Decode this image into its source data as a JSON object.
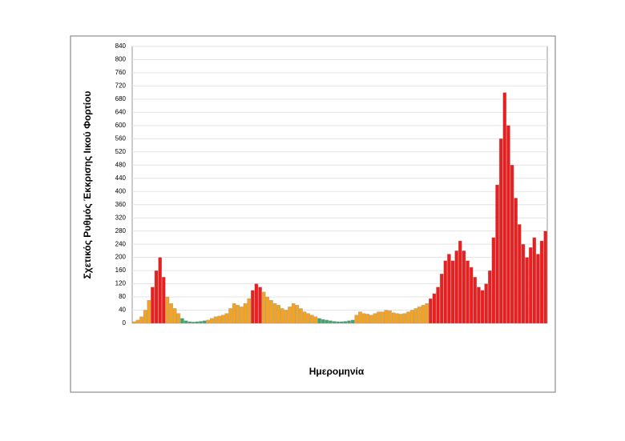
{
  "chart_data": {
    "type": "bar",
    "y_label": "Σχετικός Ρυθμός Έκκρισης Ιικού Φορτίου",
    "x_label": "Ημερομηνία",
    "categories": [
      null,
      null,
      null,
      null,
      null,
      null,
      null,
      null,
      null,
      null,
      null,
      null,
      null,
      null,
      null,
      null,
      null,
      null,
      null,
      null,
      null,
      null,
      null,
      null,
      null,
      null,
      null,
      null,
      null,
      null,
      null,
      null,
      null,
      null,
      null,
      null,
      null,
      null,
      null,
      null,
      null,
      null,
      null,
      null,
      null,
      null,
      null,
      null,
      null,
      null,
      null,
      null,
      null,
      null,
      null,
      null,
      null,
      null,
      null,
      null,
      null,
      null,
      null,
      null,
      null,
      null,
      null,
      null,
      null,
      null,
      null,
      null,
      null,
      null,
      null,
      null,
      null,
      null,
      null,
      null,
      null,
      null,
      null,
      null,
      null,
      null,
      null,
      null,
      null,
      null,
      null,
      null,
      null,
      null,
      null,
      null,
      null,
      null,
      null,
      null,
      null,
      null,
      null,
      null,
      null,
      null,
      null,
      null,
      null,
      null,
      null,
      null
    ],
    "values": [
      5,
      10,
      20,
      40,
      70,
      110,
      160,
      200,
      140,
      80,
      60,
      45,
      30,
      15,
      8,
      5,
      4,
      5,
      6,
      8,
      10,
      15,
      20,
      22,
      25,
      30,
      45,
      60,
      55,
      50,
      60,
      75,
      100,
      120,
      110,
      95,
      80,
      70,
      60,
      55,
      45,
      40,
      50,
      60,
      55,
      45,
      35,
      30,
      25,
      20,
      15,
      12,
      10,
      8,
      6,
      5,
      5,
      6,
      8,
      10,
      25,
      35,
      30,
      28,
      25,
      30,
      35,
      35,
      40,
      38,
      32,
      30,
      28,
      30,
      35,
      40,
      45,
      50,
      55,
      60,
      75,
      90,
      110,
      150,
      190,
      210,
      190,
      220,
      250,
      220,
      190,
      170,
      140,
      110,
      100,
      120,
      160,
      260,
      420,
      560,
      700,
      600,
      480,
      380,
      300,
      240,
      200,
      230,
      260,
      210,
      250,
      280
    ],
    "colors": [
      "#f7a21b",
      "#f7a21b",
      "#f7a21b",
      "#f7a21b",
      "#f7a21b",
      "#ee1c1c",
      "#ee1c1c",
      "#ee1c1c",
      "#ee1c1c",
      "#f7a21b",
      "#f7a21b",
      "#f7a21b",
      "#f7a21b",
      "#3aa66b",
      "#3aa66b",
      "#3aa66b",
      "#3aa66b",
      "#3aa66b",
      "#3aa66b",
      "#3aa66b",
      "#f7a21b",
      "#f7a21b",
      "#f7a21b",
      "#f7a21b",
      "#f7a21b",
      "#f7a21b",
      "#f7a21b",
      "#f7a21b",
      "#f7a21b",
      "#f7a21b",
      "#f7a21b",
      "#f7a21b",
      "#ee1c1c",
      "#ee1c1c",
      "#ee1c1c",
      "#f7a21b",
      "#f7a21b",
      "#f7a21b",
      "#f7a21b",
      "#f7a21b",
      "#f7a21b",
      "#f7a21b",
      "#f7a21b",
      "#f7a21b",
      "#f7a21b",
      "#f7a21b",
      "#f7a21b",
      "#f7a21b",
      "#f7a21b",
      "#f7a21b",
      "#3aa66b",
      "#3aa66b",
      "#3aa66b",
      "#3aa66b",
      "#3aa66b",
      "#3aa66b",
      "#3aa66b",
      "#3aa66b",
      "#3aa66b",
      "#3aa66b",
      "#f7a21b",
      "#f7a21b",
      "#f7a21b",
      "#f7a21b",
      "#f7a21b",
      "#f7a21b",
      "#f7a21b",
      "#f7a21b",
      "#f7a21b",
      "#f7a21b",
      "#f7a21b",
      "#f7a21b",
      "#f7a21b",
      "#f7a21b",
      "#f7a21b",
      "#f7a21b",
      "#f7a21b",
      "#f7a21b",
      "#f7a21b",
      "#f7a21b",
      "#ee1c1c",
      "#ee1c1c",
      "#ee1c1c",
      "#ee1c1c",
      "#ee1c1c",
      "#ee1c1c",
      "#ee1c1c",
      "#ee1c1c",
      "#ee1c1c",
      "#ee1c1c",
      "#ee1c1c",
      "#ee1c1c",
      "#ee1c1c",
      "#ee1c1c",
      "#ee1c1c",
      "#ee1c1c",
      "#ee1c1c",
      "#ee1c1c",
      "#ee1c1c",
      "#ee1c1c",
      "#ee1c1c",
      "#ee1c1c",
      "#ee1c1c",
      "#ee1c1c",
      "#ee1c1c",
      "#ee1c1c",
      "#ee1c1c",
      "#ee1c1c",
      "#ee1c1c",
      "#ee1c1c",
      "#ee1c1c",
      "#ee1c1c"
    ],
    "ylim": [
      0,
      840
    ],
    "yticks": [
      0,
      40,
      80,
      120,
      160,
      200,
      240,
      280,
      320,
      360,
      400,
      440,
      480,
      520,
      560,
      600,
      640,
      680,
      720,
      760,
      800,
      840
    ],
    "grid": true
  }
}
